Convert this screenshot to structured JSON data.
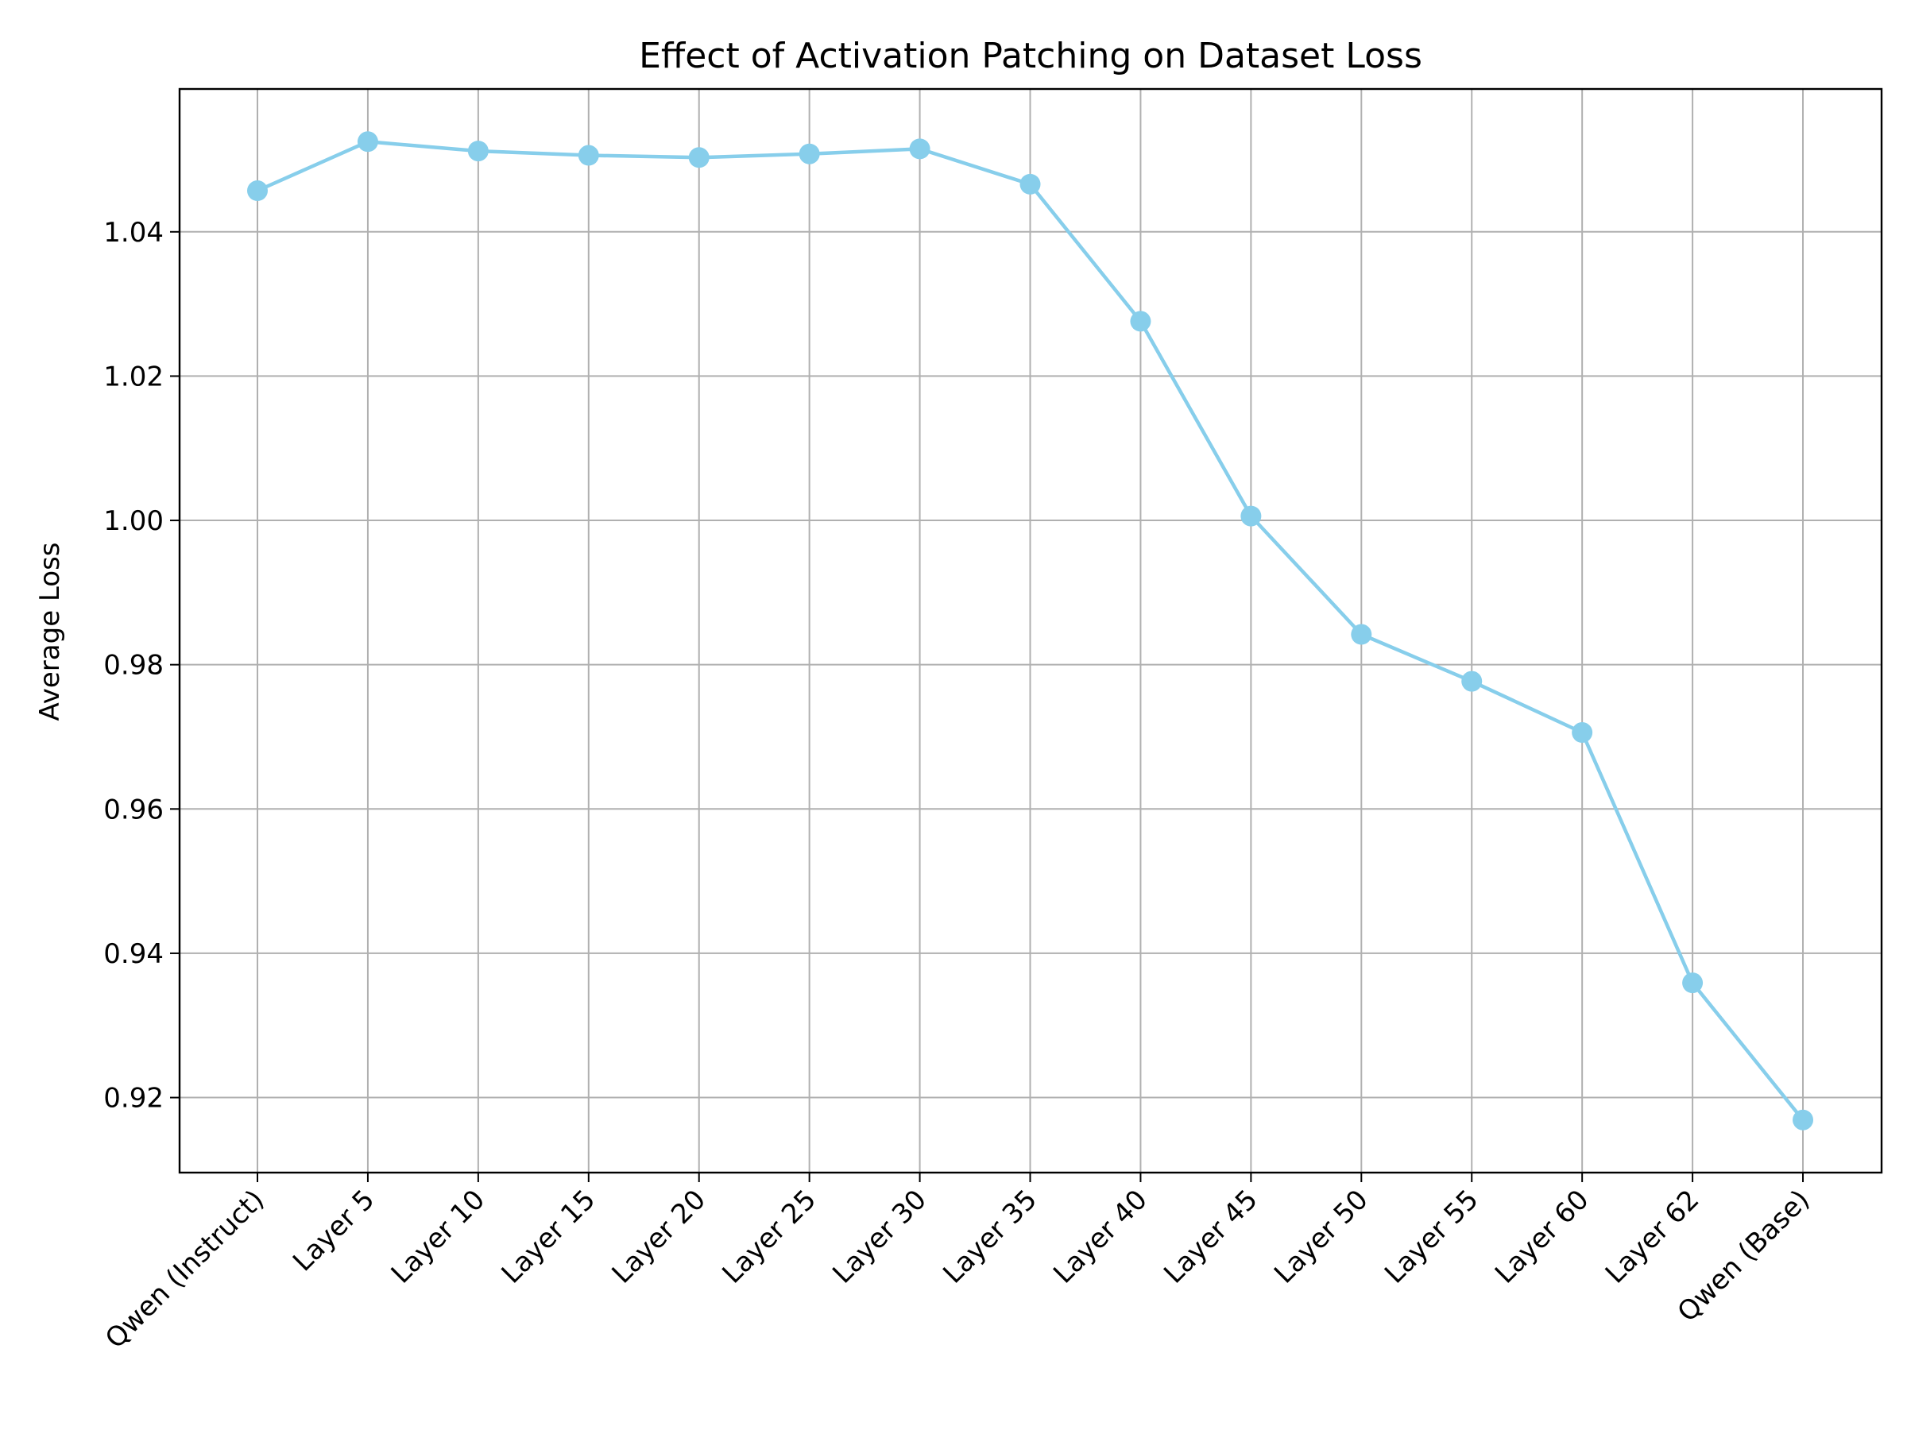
{
  "chart_data": {
    "type": "line",
    "title": "Effect of Activation Patching on Dataset Loss",
    "xlabel": "",
    "ylabel": "Average Loss",
    "categories": [
      "Qwen (Instruct)",
      "Layer 5",
      "Layer 10",
      "Layer 15",
      "Layer 20",
      "Layer 25",
      "Layer 30",
      "Layer 35",
      "Layer 40",
      "Layer 45",
      "Layer 50",
      "Layer 55",
      "Layer 60",
      "Layer 62",
      "Qwen (Base)"
    ],
    "series": [
      {
        "values": [
          1.0457,
          1.0525,
          1.0512,
          1.0506,
          1.0503,
          1.0508,
          1.0515,
          1.0466,
          1.0276,
          1.0006,
          0.9842,
          0.9777,
          0.9706,
          0.9359,
          0.9169
        ],
        "color": "#87ceeb",
        "marker": "circle"
      }
    ],
    "ylim": [
      0.9096,
      1.0598
    ],
    "yticks": [
      0.92,
      0.94,
      0.96,
      0.98,
      1.0,
      1.02,
      1.04
    ],
    "ytick_labels": [
      "0.92",
      "0.94",
      "0.96",
      "0.98",
      "1.00",
      "1.02",
      "1.04"
    ],
    "grid": true,
    "grid_color": "#b0b0b0",
    "legend": "none"
  }
}
